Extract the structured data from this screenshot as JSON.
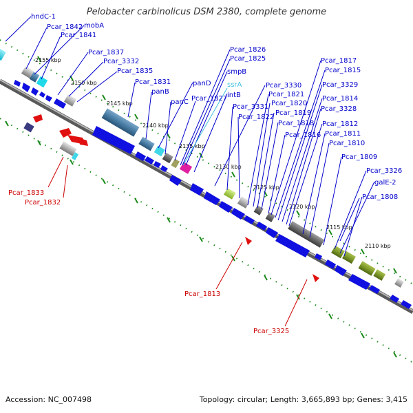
{
  "title": "Pelobacter carbinolicus DSM 2380, complete genome",
  "footer": {
    "accession": "Accession: NC_007498",
    "topology": "Topology: circular; Length: 3,665,893 bp; Genes: 3,415"
  },
  "kbp_ticks": [
    {
      "kbp": 2155,
      "label": "2155 kbp"
    },
    {
      "kbp": 2150,
      "label": "2150 kbp"
    },
    {
      "kbp": 2145,
      "label": "2145 kbp"
    },
    {
      "kbp": 2140,
      "label": "2140 kbp"
    },
    {
      "kbp": 2135,
      "label": "2135 kbp"
    },
    {
      "kbp": 2130,
      "label": "2130 kbp"
    },
    {
      "kbp": 2125,
      "label": "2125 kbp"
    },
    {
      "kbp": 2120,
      "label": "2120 kbp"
    },
    {
      "kbp": 2115,
      "label": "2115 kbp"
    },
    {
      "kbp": 2110,
      "label": "2110 kbp"
    }
  ],
  "gene_labels_top": [
    "hndC-1",
    "Pcar_1842",
    "mobA",
    "Pcar_1841",
    "Pcar_1837",
    "Pcar_3332",
    "Pcar_1835",
    "Pcar_1831",
    "panB",
    "panD",
    "panC",
    "Pcar_1827",
    "Pcar_1826",
    "Pcar_1825",
    "smpB",
    "ssrA",
    "intB",
    "Pcar_3331",
    "Pcar_1822",
    "Pcar_3330",
    "Pcar_1821",
    "Pcar_1820",
    "Pcar_1819",
    "Pcar_1818",
    "Pcar_1816",
    "Pcar_1817",
    "Pcar_1815",
    "Pcar_3329",
    "Pcar_1814",
    "Pcar_3328",
    "Pcar_1812",
    "Pcar_1811",
    "Pcar_1810",
    "Pcar_1809",
    "Pcar_3326",
    "galE-2",
    "Pcar_1808"
  ],
  "gene_labels_bottom": [
    "Pcar_1833",
    "Pcar_1832",
    "Pcar_1813",
    "Pcar_3325"
  ],
  "colors": {
    "gene_blue": "#1010e0",
    "gene_red": "#e01010",
    "rna_cyan": "#40d0e0",
    "backbone": "#808080",
    "tick_green": "#1a8a1a",
    "label_blue": "#0000cc",
    "label_red": "#cc0000",
    "label_cyan": "#40c0e0"
  }
}
